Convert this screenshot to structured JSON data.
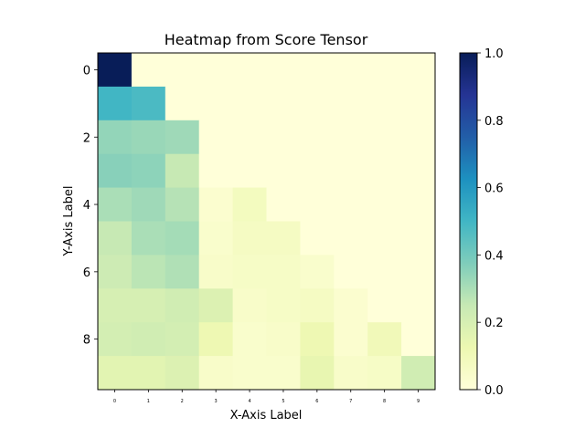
{
  "chart_data": {
    "type": "heatmap",
    "title": "Heatmap from Score Tensor",
    "xlabel": "X-Axis Label",
    "ylabel": "Y-Axis Label",
    "x_ticks": [
      "0",
      "1",
      "2",
      "3",
      "4",
      "5",
      "6",
      "7",
      "8",
      "9"
    ],
    "y_ticks": [
      "0",
      "2",
      "4",
      "6",
      "8"
    ],
    "colorbar": {
      "range": [
        0.0,
        1.0
      ],
      "ticks": [
        "0.0",
        "0.2",
        "0.4",
        "0.6",
        "0.8",
        "1.0"
      ],
      "colormap": "YlGnBu"
    },
    "values": [
      [
        1.0,
        0.0,
        0.0,
        0.0,
        0.0,
        0.0,
        0.0,
        0.0,
        0.0,
        0.0
      ],
      [
        0.5,
        0.48,
        0.0,
        0.0,
        0.0,
        0.0,
        0.0,
        0.0,
        0.0,
        0.0
      ],
      [
        0.34,
        0.33,
        0.32,
        0.0,
        0.0,
        0.0,
        0.0,
        0.0,
        0.0,
        0.0
      ],
      [
        0.36,
        0.35,
        0.25,
        0.0,
        0.0,
        0.0,
        0.0,
        0.0,
        0.0,
        0.0
      ],
      [
        0.3,
        0.32,
        0.28,
        0.03,
        0.08,
        0.0,
        0.0,
        0.0,
        0.0,
        0.0
      ],
      [
        0.25,
        0.3,
        0.31,
        0.04,
        0.07,
        0.07,
        0.0,
        0.0,
        0.0,
        0.0
      ],
      [
        0.23,
        0.27,
        0.29,
        0.05,
        0.06,
        0.06,
        0.04,
        0.0,
        0.0,
        0.0
      ],
      [
        0.2,
        0.2,
        0.22,
        0.18,
        0.05,
        0.06,
        0.07,
        0.03,
        0.0,
        0.0
      ],
      [
        0.21,
        0.22,
        0.21,
        0.12,
        0.04,
        0.05,
        0.12,
        0.03,
        0.1,
        0.0
      ],
      [
        0.16,
        0.16,
        0.18,
        0.05,
        0.04,
        0.04,
        0.14,
        0.05,
        0.06,
        0.22
      ]
    ]
  }
}
